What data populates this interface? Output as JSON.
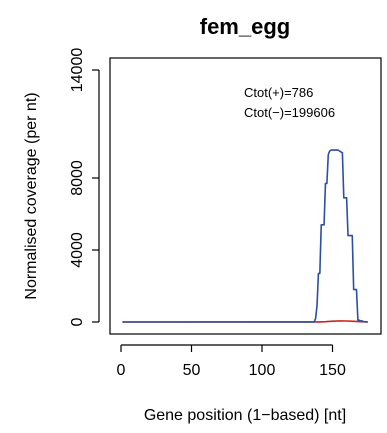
{
  "chart_data": {
    "type": "line",
    "title": "fem_egg",
    "xlabel": "Gene position (1−based) [nt]",
    "ylabel": "Normalised coverage (per nt)",
    "xlim": [
      0,
      178
    ],
    "ylim": [
      0,
      14000
    ],
    "x_ticks": [
      0,
      50,
      100,
      150
    ],
    "y_ticks": [
      0,
      4000,
      8000,
      14000
    ],
    "x_tick_labels": [
      "0",
      "50",
      "100",
      "150"
    ],
    "y_tick_labels": [
      "0",
      "4000",
      "8000",
      "14000"
    ],
    "annotations": [
      "Ctot(+)=786",
      "Ctot(−)=199606"
    ],
    "colors": {
      "plus": "#cc2222",
      "minus": "#2c4fa3"
    },
    "series": [
      {
        "color": "#cc2222",
        "x": [
          1,
          140,
          145,
          150,
          155,
          160,
          165,
          170,
          175
        ],
        "y": [
          0,
          5,
          20,
          45,
          60,
          55,
          40,
          20,
          0
        ]
      },
      {
        "color": "#2c4fa3",
        "x": [
          1,
          137,
          138,
          139,
          140,
          141,
          142,
          143,
          144,
          145,
          146,
          147,
          148,
          149,
          150,
          151,
          152,
          153,
          154,
          155,
          156,
          157,
          158,
          159,
          160,
          161,
          162,
          163,
          164,
          165,
          166,
          167,
          168,
          169,
          170,
          171,
          172,
          173,
          174,
          175
        ],
        "y": [
          0,
          0,
          200,
          900,
          2700,
          2700,
          5400,
          5400,
          5400,
          7700,
          7700,
          9300,
          9500,
          9550,
          9550,
          9550,
          9550,
          9550,
          9550,
          9500,
          9450,
          9400,
          6900,
          6900,
          6900,
          4800,
          4800,
          4800,
          4800,
          1800,
          1800,
          1800,
          100,
          100,
          60,
          60,
          20,
          20,
          0,
          0
        ]
      }
    ]
  }
}
